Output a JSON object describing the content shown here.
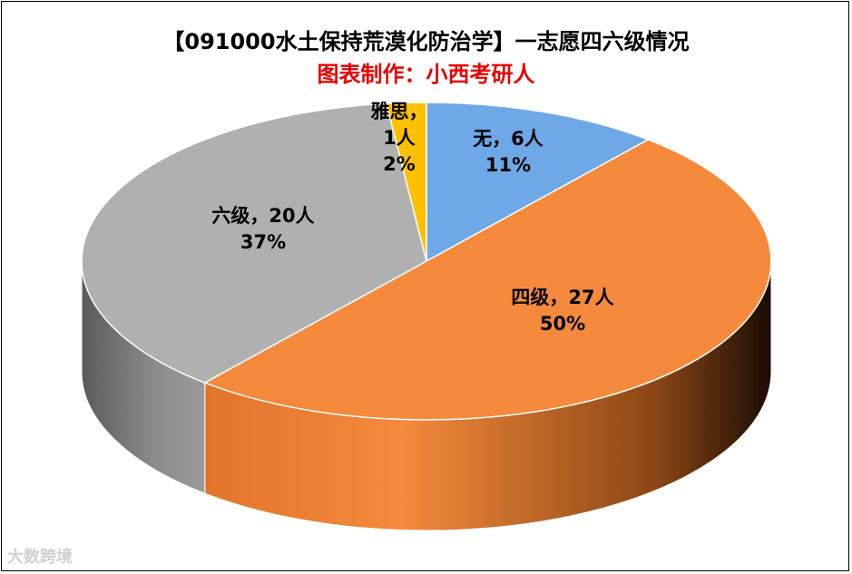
{
  "chart_data": {
    "type": "pie",
    "title": "【091000水土保持荒漠化防治学】一志愿四六级情况",
    "subtitle": "图表制作：小西考研人",
    "slices": [
      {
        "category": "无",
        "value": 6,
        "percent": "11%",
        "label": "无，6人",
        "color": "#6fa8e6"
      },
      {
        "category": "四级",
        "value": 27,
        "percent": "50%",
        "label": "四级，27人",
        "color": "#f58a3c"
      },
      {
        "category": "六级",
        "value": 20,
        "percent": "37%",
        "label": "六级，20人",
        "color": "#b0b0b0"
      },
      {
        "category": "雅思",
        "value": 1,
        "percent": "2%",
        "label": "雅思，",
        "label2": "1人",
        "color": "#ffc000"
      }
    ],
    "legend": "none",
    "style": "3d"
  },
  "watermark": "大数跨境"
}
